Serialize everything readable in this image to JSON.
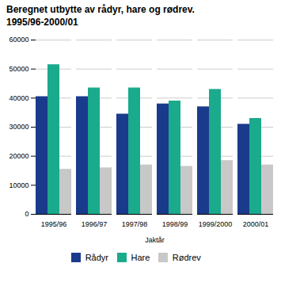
{
  "chart_data": {
    "type": "bar",
    "title": "Beregnet utbytte av rådyr, hare og rødrev.",
    "subtitle": "1995/96-2000/01",
    "xlabel": "Jaktår",
    "categories": [
      "1995/96",
      "1996/97",
      "1997/98",
      "1998/99",
      "1999/2000",
      "2000/01"
    ],
    "series": [
      {
        "name": "Rådyr",
        "color": "#1a3a8c",
        "values": [
          40500,
          40500,
          34500,
          38000,
          37000,
          31000
        ]
      },
      {
        "name": "Hare",
        "color": "#1aaa8c",
        "values": [
          51500,
          43500,
          43500,
          39000,
          43000,
          33000
        ]
      },
      {
        "name": "Rødrev",
        "color": "#c8c8c8",
        "values": [
          15500,
          16000,
          17000,
          16500,
          18500,
          17000
        ]
      }
    ],
    "ylim": [
      0,
      60000
    ],
    "yticks": [
      0,
      10000,
      20000,
      30000,
      40000,
      50000,
      60000
    ],
    "grid": true,
    "legend": "bottom"
  }
}
